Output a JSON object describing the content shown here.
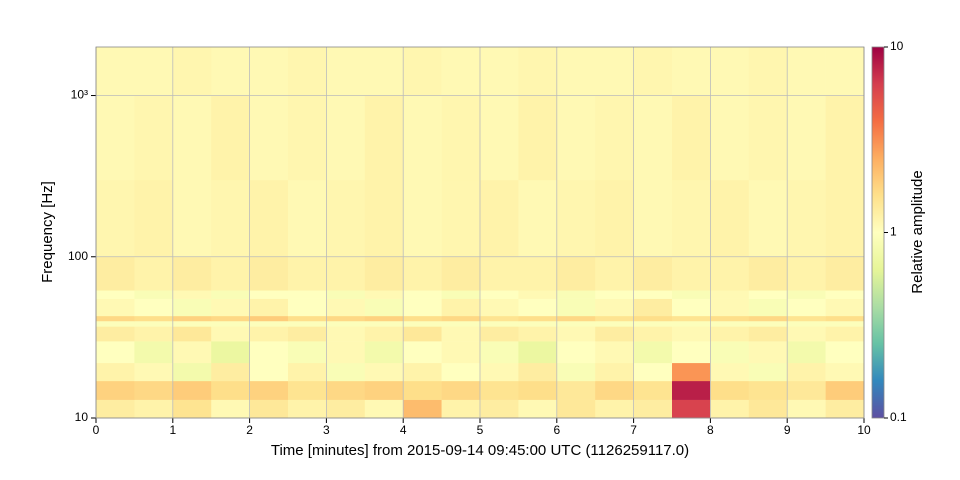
{
  "chart_data": {
    "type": "heatmap",
    "xlabel": "Time [minutes] from 2015-09-14 09:45:00 UTC (1126259117.0)",
    "ylabel": "Frequency [Hz]",
    "colorbar_label": "Relative amplitude",
    "xbins": [
      0,
      0.5,
      1,
      1.5,
      2,
      2.5,
      3,
      3.5,
      4,
      4.5,
      5,
      5.5,
      6,
      6.5,
      7,
      7.5,
      8,
      8.5,
      9,
      9.5,
      10
    ],
    "ybins": [
      10,
      13,
      17,
      22,
      30,
      37,
      40,
      43,
      55,
      62,
      100,
      300,
      1000,
      2000
    ],
    "values": [
      [
        1.3,
        1.2,
        1.5,
        1.1,
        1.4,
        1.2,
        1.3,
        1.1,
        2.2,
        1.2,
        1.3,
        1.1,
        1.4,
        1.2,
        1.3,
        6,
        1.2,
        1.4,
        1.1,
        1.3
      ],
      [
        1.8,
        1.7,
        1.9,
        1.6,
        1.8,
        1.5,
        1.7,
        1.8,
        1.6,
        1.7,
        1.5,
        1.6,
        1.4,
        1.7,
        1.5,
        8,
        1.6,
        1.5,
        1.4,
        1.9
      ],
      [
        1.2,
        1.1,
        0.8,
        1.3,
        1,
        1.2,
        0.9,
        1.1,
        1.2,
        1,
        1.1,
        1.3,
        0.9,
        1.2,
        1,
        3,
        1.1,
        0.9,
        1.2,
        1.1
      ],
      [
        1,
        0.8,
        1.1,
        0.7,
        1,
        0.9,
        1.1,
        0.8,
        1,
        1.1,
        0.9,
        0.7,
        1,
        1.1,
        0.8,
        1,
        0.9,
        1.1,
        0.8,
        1
      ],
      [
        1.3,
        1.2,
        1.4,
        1.1,
        1.2,
        1.3,
        1.1,
        1.2,
        1.4,
        1.1,
        1.3,
        1.2,
        1.1,
        1.3,
        1.2,
        1.1,
        1.2,
        1.3,
        1.1,
        1.2
      ],
      [
        0.95,
        0.95,
        0.95,
        0.95,
        0.95,
        0.95,
        0.95,
        0.95,
        0.95,
        0.95,
        0.95,
        0.95,
        0.95,
        0.95,
        0.95,
        0.95,
        0.95,
        0.95,
        0.95,
        0.95
      ],
      [
        1.7,
        1.6,
        1.8,
        1.7,
        1.9,
        1.6,
        1.7,
        1.8,
        1.6,
        1.7,
        1.5,
        1.6,
        1.7,
        1.5,
        1.6,
        1.5,
        1.6,
        1.7,
        1.5,
        1.6
      ],
      [
        1.1,
        1,
        0.9,
        1.1,
        1.2,
        1,
        1.1,
        0.9,
        1,
        1.2,
        1.1,
        1,
        0.9,
        1.1,
        1.3,
        1,
        1.1,
        0.9,
        1,
        1.1
      ],
      [
        1,
        0.9,
        1.1,
        0.9,
        1,
        1,
        0.9,
        1.1,
        1,
        0.9,
        1,
        1.1,
        0.9,
        1,
        1,
        0.9,
        1.1,
        1,
        0.9,
        1
      ],
      [
        1.3,
        1.2,
        1.3,
        1.2,
        1.3,
        1.2,
        1.2,
        1.3,
        1.2,
        1.3,
        1.2,
        1.2,
        1.3,
        1.2,
        1.3,
        1.2,
        1.2,
        1.3,
        1.2,
        1.3
      ],
      [
        1.15,
        1.2,
        1.1,
        1.15,
        1.2,
        1.1,
        1.15,
        1.2,
        1.1,
        1.15,
        1.2,
        1.1,
        1.15,
        1.2,
        1.1,
        1.15,
        1.2,
        1.1,
        1.15,
        1.2
      ],
      [
        1.1,
        1.15,
        1.1,
        1.2,
        1.1,
        1.15,
        1.1,
        1.2,
        1.1,
        1.15,
        1.1,
        1.2,
        1.1,
        1.15,
        1.1,
        1.2,
        1.1,
        1.15,
        1.1,
        1.2
      ],
      [
        1.1,
        1.1,
        1.15,
        1.1,
        1.1,
        1.15,
        1.1,
        1.1,
        1.15,
        1.1,
        1.1,
        1.15,
        1.1,
        1.1,
        1.15,
        1.1,
        1.1,
        1.15,
        1.1,
        1.1
      ]
    ],
    "xlim": [
      0,
      10
    ],
    "xticks": [
      0,
      1,
      2,
      3,
      4,
      5,
      6,
      7,
      8,
      9,
      10
    ],
    "ylim": [
      10,
      2000
    ],
    "yticks": [
      10,
      100,
      {
        "value": 1000,
        "label": "10³"
      }
    ],
    "ylog": true,
    "grid": true,
    "colormap": [
      "#5e4fa2",
      "#3288bd",
      "#66c2a5",
      "#abdda4",
      "#e6f598",
      "#ffffbf",
      "#fee08b",
      "#fdae61",
      "#f46d43",
      "#d53e4f",
      "#9e0142"
    ],
    "clim": [
      0.1,
      10
    ],
    "cticks": [
      0.1,
      1,
      10
    ],
    "clog": true
  }
}
